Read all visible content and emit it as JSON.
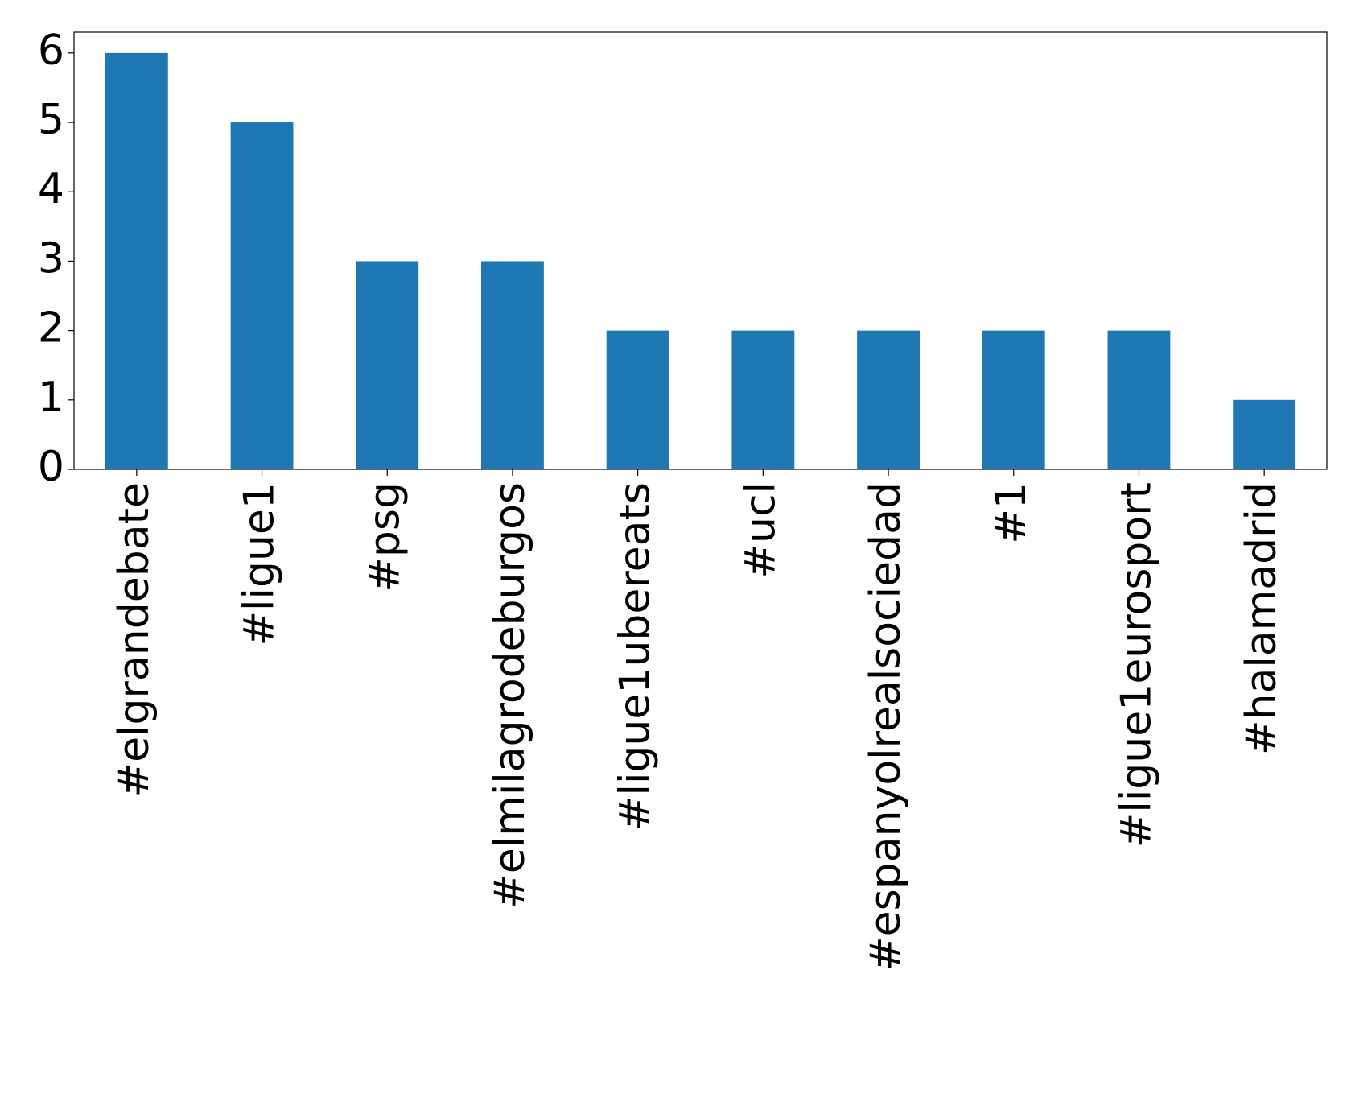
{
  "chart_data": {
    "type": "bar",
    "categories": [
      "#elgrandebate",
      "#ligue1",
      "#psg",
      "#elmilagrodeburgos",
      "#ligue1ubereats",
      "#ucl",
      "#espanyolrealsociedad",
      "#1",
      "#ligue1eurosport",
      "#halamadrid"
    ],
    "values": [
      6,
      5,
      3,
      3,
      2,
      2,
      2,
      2,
      2,
      1
    ],
    "color": "#1f77b4",
    "ylim": [
      0,
      6.3
    ],
    "yticks": [
      0,
      1,
      2,
      3,
      4,
      5,
      6
    ],
    "grid": false
  }
}
